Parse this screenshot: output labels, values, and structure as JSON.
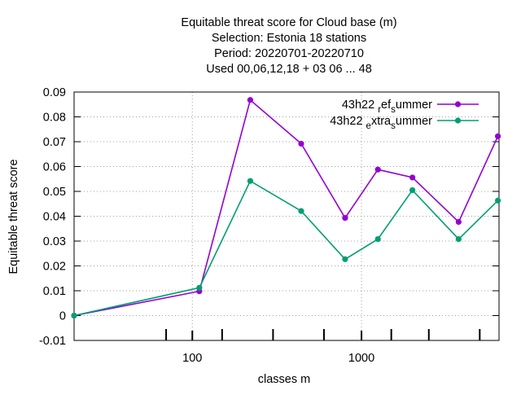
{
  "chart_data": {
    "type": "line",
    "title": [
      "Equitable threat score  for Cloud base (m)",
      "Selection: Estonia      18 stations",
      "Period: 20220701-20220710",
      "Used  00,06,12,18  + 03 06 ... 48"
    ],
    "xlabel": "classes m",
    "ylabel": "Equitable threat score",
    "x_scale": "log",
    "xlim": [
      20,
      6500
    ],
    "ylim": [
      -0.01,
      0.09
    ],
    "x_tick_labels": [
      "100",
      "1000"
    ],
    "y_tick_labels": [
      "-0.01",
      "0",
      "0.01",
      "0.02",
      "0.03",
      "0.04",
      "0.05",
      "0.06",
      "0.07",
      "0.08",
      "0.09"
    ],
    "grid": true,
    "legend_position": "top-right",
    "x": [
      20,
      110,
      220,
      440,
      800,
      1250,
      2000,
      3750,
      6400
    ],
    "series": [
      {
        "name": "43h22 ref summer",
        "legend_parts": [
          "43h22 ",
          "r",
          "ef",
          "s",
          "ummer"
        ],
        "color": "#9400d3",
        "values": [
          0.0,
          0.0098,
          0.0868,
          0.0692,
          0.0393,
          0.0588,
          0.0556,
          0.0377,
          0.0722
        ]
      },
      {
        "name": "43h22 extra summer",
        "legend_parts": [
          "43h22 ",
          "e",
          "xtra",
          "s",
          "ummer"
        ],
        "color": "#009e73",
        "values": [
          0.0,
          0.0112,
          0.0542,
          0.0421,
          0.0227,
          0.0308,
          0.0505,
          0.0308,
          0.0463
        ]
      }
    ],
    "inner_x_ticks": [
      70,
      150,
      300,
      600,
      1500,
      2500,
      5000
    ]
  }
}
